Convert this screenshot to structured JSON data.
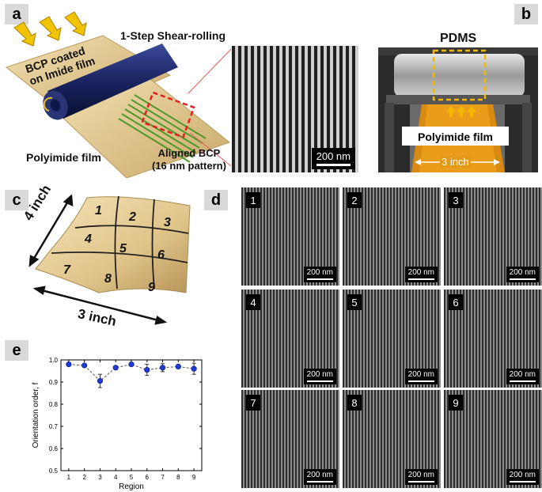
{
  "panels": {
    "a": {
      "letter": "a",
      "title": "1-Step Shear-rolling",
      "bcp_label_line1": "BCP coated",
      "bcp_label_line2": "on Imide film",
      "polyimide_label": "Polyimide film",
      "aligned_line1": "Aligned BCP",
      "aligned_line2": "(16 nm pattern)",
      "scale": "200 nm"
    },
    "b": {
      "letter": "b",
      "pdms_label": "PDMS",
      "polyimide_label": "Polyimide film",
      "width_label": "3 inch",
      "highlight_color": "#f5b800"
    },
    "c": {
      "letter": "c",
      "height_label": "4 inch",
      "width_label": "3 inch",
      "regions": [
        "1",
        "2",
        "3",
        "4",
        "5",
        "6",
        "7",
        "8",
        "9"
      ]
    },
    "d": {
      "letter": "d",
      "tiles": [
        {
          "num": "1",
          "scale": "200 nm"
        },
        {
          "num": "2",
          "scale": "200 nm"
        },
        {
          "num": "3",
          "scale": "200 nm"
        },
        {
          "num": "4",
          "scale": "200 nm"
        },
        {
          "num": "5",
          "scale": "200 nm"
        },
        {
          "num": "6",
          "scale": "200 nm"
        },
        {
          "num": "7",
          "scale": "200 nm"
        },
        {
          "num": "8",
          "scale": "200 nm"
        },
        {
          "num": "9",
          "scale": "200 nm"
        }
      ]
    },
    "e": {
      "letter": "e"
    }
  },
  "chart_data": {
    "type": "scatter",
    "title": "",
    "xlabel": "Region",
    "ylabel": "Orientation order, f",
    "x": [
      1,
      2,
      3,
      4,
      5,
      6,
      7,
      8,
      9
    ],
    "y": [
      0.98,
      0.975,
      0.905,
      0.965,
      0.98,
      0.955,
      0.965,
      0.97,
      0.96
    ],
    "yerr": [
      0.005,
      0.006,
      0.03,
      0.007,
      0.006,
      0.025,
      0.018,
      0.008,
      0.025
    ],
    "xticks": [
      "1",
      "2",
      "3",
      "4",
      "5",
      "6",
      "7",
      "8",
      "9"
    ],
    "yticks": [
      "0.5",
      "0.6",
      "0.7",
      "0.8",
      "0.9",
      "1.0"
    ],
    "xlim": [
      0.5,
      9.5
    ],
    "ylim": [
      0.5,
      1.0
    ],
    "marker_color": "#1f3bd6",
    "line_style": "dashed",
    "grid": false
  }
}
